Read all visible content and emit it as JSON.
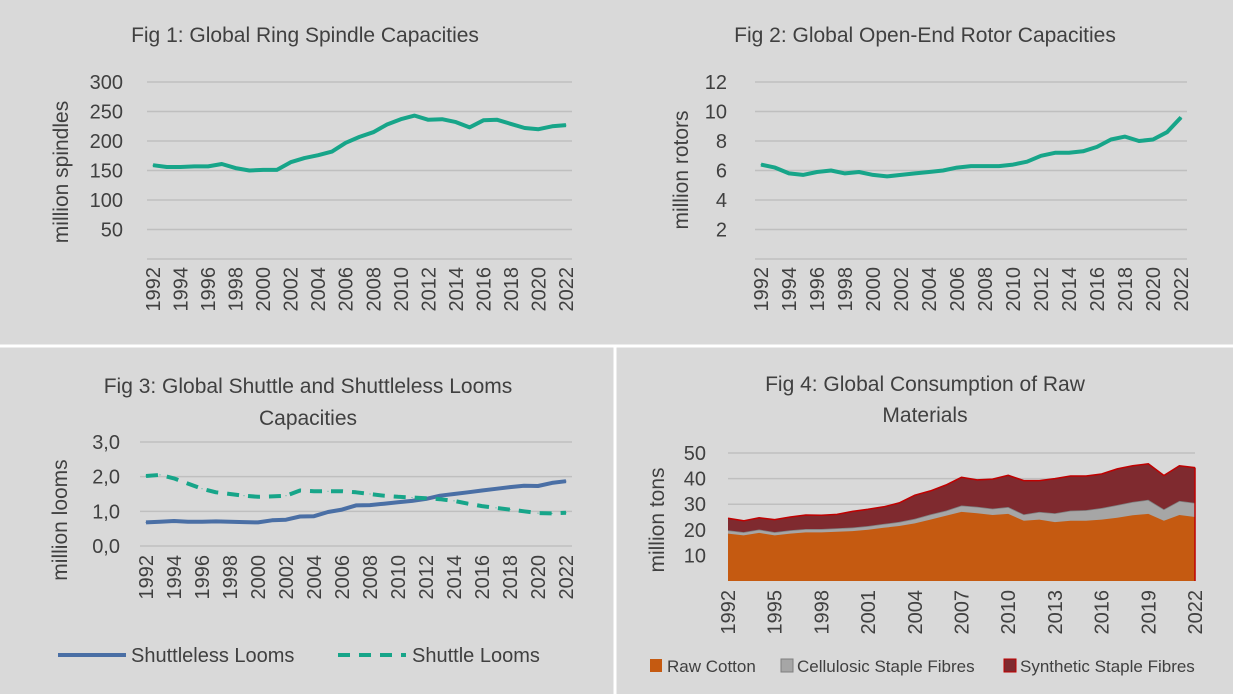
{
  "chart_data": [
    {
      "type": "line",
      "title": "Fig 1: Global Ring Spindle Capacities",
      "ylabel": "million spindles",
      "ylim": [
        0,
        300
      ],
      "yticks": [
        "50",
        "100",
        "150",
        "200",
        "250",
        "300"
      ],
      "grid": true,
      "x": [
        1992,
        1993,
        1994,
        1995,
        1996,
        1997,
        1998,
        1999,
        2000,
        2001,
        2002,
        2003,
        2004,
        2005,
        2006,
        2007,
        2008,
        2009,
        2010,
        2011,
        2012,
        2013,
        2014,
        2015,
        2016,
        2017,
        2018,
        2019,
        2020,
        2021,
        2022
      ],
      "xticks": [
        "1992",
        "1994",
        "1996",
        "1998",
        "2000",
        "2002",
        "2004",
        "2006",
        "2008",
        "2010",
        "2012",
        "2014",
        "2016",
        "2018",
        "2020",
        "2022"
      ],
      "series": [
        {
          "color": "#17a589",
          "dash": false,
          "values": [
            159,
            156,
            156,
            157,
            157,
            161,
            154,
            150,
            151,
            151,
            164,
            171,
            176,
            182,
            197,
            207,
            215,
            228,
            237,
            243,
            236,
            237,
            232,
            223,
            235,
            236,
            229,
            222,
            220,
            225,
            227
          ]
        }
      ]
    },
    {
      "type": "line",
      "title": "Fig 2: Global Open-End Rotor Capacities",
      "ylabel": "million rotors",
      "ylim": [
        0,
        12
      ],
      "yticks": [
        "2",
        "4",
        "6",
        "8",
        "10",
        "12"
      ],
      "grid": true,
      "x": [
        1992,
        1993,
        1994,
        1995,
        1996,
        1997,
        1998,
        1999,
        2000,
        2001,
        2002,
        2003,
        2004,
        2005,
        2006,
        2007,
        2008,
        2009,
        2010,
        2011,
        2012,
        2013,
        2014,
        2015,
        2016,
        2017,
        2018,
        2019,
        2020,
        2021,
        2022
      ],
      "xticks": [
        "1992",
        "1994",
        "1996",
        "1998",
        "2000",
        "2002",
        "2004",
        "2006",
        "2008",
        "2010",
        "2012",
        "2014",
        "2016",
        "2018",
        "2020",
        "2022"
      ],
      "series": [
        {
          "color": "#17a589",
          "dash": false,
          "values": [
            6.4,
            6.2,
            5.8,
            5.7,
            5.9,
            6.0,
            5.8,
            5.9,
            5.7,
            5.6,
            5.7,
            5.8,
            5.9,
            6.0,
            6.2,
            6.3,
            6.3,
            6.3,
            6.4,
            6.6,
            7.0,
            7.2,
            7.2,
            7.3,
            7.6,
            8.1,
            8.3,
            8.0,
            8.1,
            8.6,
            9.6
          ]
        }
      ]
    },
    {
      "type": "line",
      "title_lines": [
        "Fig 3: Global Shuttle and Shuttleless Looms",
        "Capacities"
      ],
      "ylabel": "million looms",
      "ylim": [
        0,
        3
      ],
      "yticks": [
        "0,0",
        "1,0",
        "2,0",
        "3,0"
      ],
      "grid": true,
      "legend": "bottom",
      "x": [
        1992,
        1993,
        1994,
        1995,
        1996,
        1997,
        1998,
        1999,
        2000,
        2001,
        2002,
        2003,
        2004,
        2005,
        2006,
        2007,
        2008,
        2009,
        2010,
        2011,
        2012,
        2013,
        2014,
        2015,
        2016,
        2017,
        2018,
        2019,
        2020,
        2021,
        2022
      ],
      "xticks": [
        "1992",
        "1994",
        "1996",
        "1998",
        "2000",
        "2002",
        "2004",
        "2006",
        "2008",
        "2010",
        "2012",
        "2014",
        "2016",
        "2018",
        "2020",
        "2022"
      ],
      "series": [
        {
          "name": "Shuttleless Looms",
          "color": "#4a6fa5",
          "dash": false,
          "values": [
            0.68,
            0.7,
            0.72,
            0.7,
            0.7,
            0.71,
            0.7,
            0.69,
            0.68,
            0.74,
            0.76,
            0.85,
            0.86,
            0.98,
            1.05,
            1.17,
            1.18,
            1.22,
            1.26,
            1.3,
            1.36,
            1.45,
            1.5,
            1.55,
            1.6,
            1.65,
            1.7,
            1.74,
            1.73,
            1.82,
            1.87
          ]
        },
        {
          "name": "Shuttle Looms",
          "color": "#17a589",
          "dash": true,
          "values": [
            2.02,
            2.05,
            1.95,
            1.8,
            1.65,
            1.55,
            1.5,
            1.45,
            1.42,
            1.43,
            1.45,
            1.6,
            1.58,
            1.58,
            1.58,
            1.55,
            1.5,
            1.45,
            1.42,
            1.4,
            1.38,
            1.35,
            1.3,
            1.22,
            1.15,
            1.1,
            1.05,
            1.0,
            0.95,
            0.94,
            0.96
          ]
        }
      ]
    },
    {
      "type": "area",
      "stacked": true,
      "title_lines": [
        "Fig 4: Global Consumption of Raw",
        "Materials"
      ],
      "ylabel": "million tons",
      "ylim": [
        0,
        50
      ],
      "yticks": [
        "10",
        "20",
        "30",
        "40",
        "50"
      ],
      "grid": true,
      "legend": "bottom",
      "x": [
        1992,
        1993,
        1994,
        1995,
        1996,
        1997,
        1998,
        1999,
        2000,
        2001,
        2002,
        2003,
        2004,
        2005,
        2006,
        2007,
        2008,
        2009,
        2010,
        2011,
        2012,
        2013,
        2014,
        2015,
        2016,
        2017,
        2018,
        2019,
        2020,
        2021,
        2022
      ],
      "xticks": [
        "1992",
        "1995",
        "1998",
        "2001",
        "2004",
        "2007",
        "2010",
        "2013",
        "2016",
        "2019",
        "2022"
      ],
      "series": [
        {
          "name": "Raw Cotton",
          "color": "#c55a11",
          "edge": "#c55a11",
          "values": [
            18.5,
            17.8,
            18.8,
            17.8,
            18.5,
            19,
            19,
            19.2,
            19.5,
            20,
            20.8,
            21.5,
            22.5,
            24,
            25.5,
            27,
            26.5,
            25.8,
            26.2,
            23.5,
            24,
            23,
            23.5,
            23.5,
            24,
            24.7,
            25.7,
            26.2,
            23.5,
            25.8,
            25.0
          ]
        },
        {
          "name": "Cellulosic Staple Fibres",
          "color": "#a6a6a6",
          "edge": "#7f7f7f",
          "values": [
            1.3,
            1.3,
            1.3,
            1.3,
            1.3,
            1.3,
            1.3,
            1.4,
            1.4,
            1.5,
            1.5,
            1.6,
            1.8,
            2,
            2,
            2.5,
            2.5,
            2.5,
            2.7,
            2.5,
            3,
            3.5,
            4,
            4.2,
            4.5,
            5,
            5.2,
            5.5,
            4.5,
            5.5,
            5.5
          ]
        },
        {
          "name": "Synthetic Staple Fibres",
          "color": "#7f2a2f",
          "edge": "#c00000",
          "values": [
            4.7,
            4.4,
            4.6,
            4.9,
            5.2,
            5.5,
            5.4,
            5.4,
            6.3,
            6.5,
            6.7,
            7.4,
            9.2,
            9.2,
            10,
            11,
            10.5,
            11.5,
            12.4,
            13.2,
            12.2,
            13.5,
            13.5,
            13.3,
            13.3,
            14.1,
            14.1,
            14.1,
            13.2,
            13.7,
            13.8
          ]
        }
      ]
    }
  ]
}
